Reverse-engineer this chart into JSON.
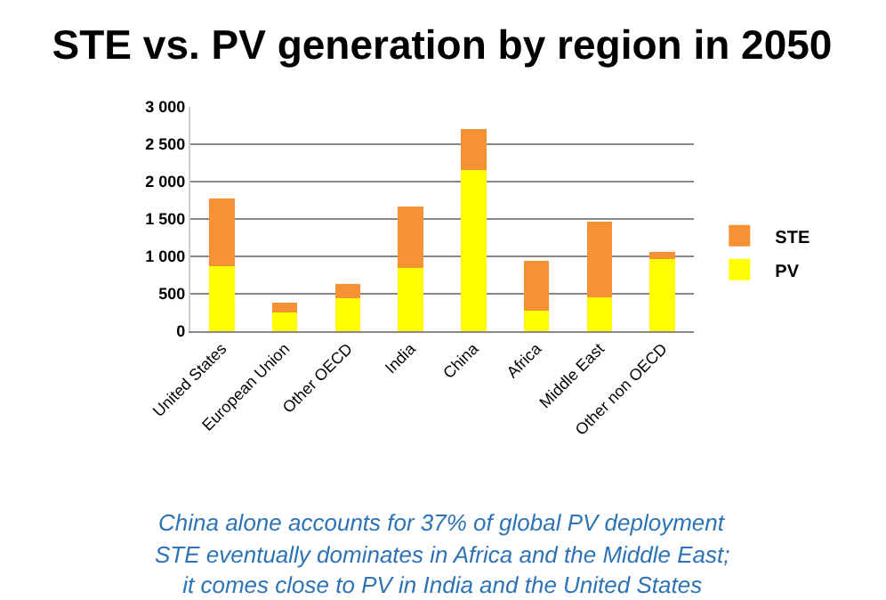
{
  "chart_data": {
    "type": "bar",
    "title": "STE vs. PV generation by region in 2050",
    "categories": [
      "United States",
      "European Union",
      "Other OECD",
      "India",
      "China",
      "Africa",
      "Middle East",
      "Other non OECD"
    ],
    "stacked": true,
    "series": [
      {
        "name": "PV",
        "color": "#ffff00",
        "values": [
          870,
          250,
          440,
          850,
          2150,
          270,
          450,
          970
        ]
      },
      {
        "name": "STE",
        "color": "#f79234",
        "values": [
          900,
          130,
          190,
          820,
          550,
          670,
          1010,
          90
        ]
      }
    ],
    "ylim": [
      0,
      3000
    ],
    "yticks": [
      0,
      500,
      {
        "value": 1000,
        "label": "1 000"
      },
      {
        "value": 1500,
        "label": "1 500"
      },
      {
        "value": 2000,
        "label": "2 000"
      },
      {
        "value": 2500,
        "label": "2 500"
      },
      {
        "value": 3000,
        "label": "3 000"
      }
    ],
    "grid": "y",
    "legend": "right",
    "annotations": [
      "China alone accounts for 37% of global PV deployment",
      "STE eventually dominates in Africa and the Middle East;\nit comes close to PV in India and the United States"
    ]
  }
}
